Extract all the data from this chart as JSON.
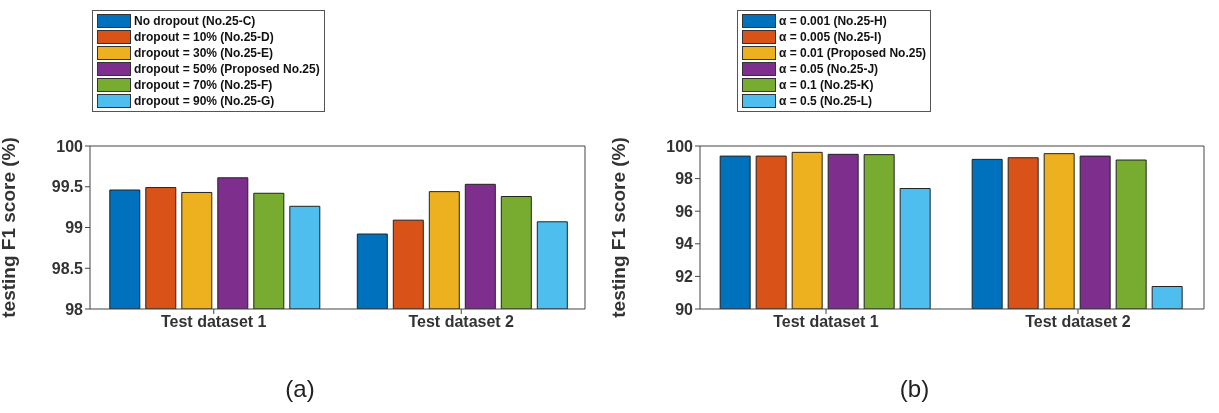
{
  "chart_data": [
    {
      "type": "bar",
      "ylabel": "testing F1 score (%)",
      "categories": [
        "Test dataset 1",
        "Test dataset 2"
      ],
      "ylim": [
        98,
        100
      ],
      "yticks": [
        98,
        98.5,
        99,
        99.5,
        100
      ],
      "grid": false,
      "legend": "top",
      "annotations": [
        "(a)"
      ],
      "series": [
        {
          "name": "No dropout (No.25-C)",
          "color": "#0072bd",
          "values": [
            99.46,
            98.92
          ]
        },
        {
          "name": "dropout = 10% (No.25-D)",
          "color": "#d95319",
          "values": [
            99.49,
            99.09
          ]
        },
        {
          "name": "dropout = 30% (No.25-E)",
          "color": "#edb120",
          "values": [
            99.43,
            99.44
          ]
        },
        {
          "name": "dropout = 50% (Proposed No.25)",
          "color": "#7e2f8e",
          "values": [
            99.61,
            99.53
          ]
        },
        {
          "name": "dropout = 70% (No.25-F)",
          "color": "#77ac30",
          "values": [
            99.42,
            99.38
          ]
        },
        {
          "name": "dropout = 90% (No.25-G)",
          "color": "#4dbeee",
          "values": [
            99.26,
            99.07
          ]
        }
      ]
    },
    {
      "type": "bar",
      "ylabel": "testing F1 score (%)",
      "categories": [
        "Test dataset 1",
        "Test dataset 2"
      ],
      "ylim": [
        90,
        100
      ],
      "yticks": [
        90,
        92,
        94,
        96,
        98,
        100
      ],
      "grid": false,
      "legend": "top",
      "annotations": [
        "(b)"
      ],
      "series": [
        {
          "name": "α = 0.001 (No.25-H)",
          "color": "#0072bd",
          "values": [
            99.38,
            99.18
          ]
        },
        {
          "name": "α = 0.005 (No.25-I)",
          "color": "#d95319",
          "values": [
            99.38,
            99.28
          ]
        },
        {
          "name": "α = 0.01 (Proposed No.25)",
          "color": "#edb120",
          "values": [
            99.61,
            99.53
          ]
        },
        {
          "name": "α = 0.05 (No.25-J)",
          "color": "#7e2f8e",
          "values": [
            99.49,
            99.38
          ]
        },
        {
          "name": "α = 0.1 (No.25-K)",
          "color": "#77ac30",
          "values": [
            99.47,
            99.14
          ]
        },
        {
          "name": "α = 0.5 (No.25-L)",
          "color": "#4dbeee",
          "values": [
            97.39,
            91.38
          ]
        }
      ]
    }
  ]
}
